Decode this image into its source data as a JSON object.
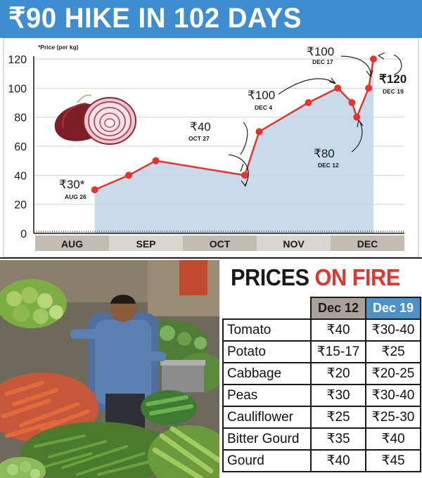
{
  "headline": "₹90 HIKE IN 102 DAYS",
  "chart_data": {
    "type": "area",
    "note": "*Price (per kg)",
    "ylim": [
      0,
      120
    ],
    "yticks": [
      "0",
      "20",
      "40",
      "60",
      "80",
      "100",
      "120"
    ],
    "months": [
      "AUG",
      "SEP",
      "OCT",
      "NOV",
      "DEC"
    ],
    "x": [
      "2019-08-26",
      "2019-09-09",
      "2019-09-20",
      "2019-10-27",
      "2019-11-02",
      "2019-11-22",
      "2019-12-04",
      "2019-12-10",
      "2019-12-12",
      "2019-12-17",
      "2019-12-19"
    ],
    "values": [
      30,
      40,
      50,
      40,
      70,
      90,
      100,
      90,
      80,
      100,
      120
    ],
    "colors": {
      "line": "#e8322e",
      "fill": "#bed5e6",
      "axis_band": "#c3bcb3",
      "axis_band_alt": "#dad5cf"
    },
    "annotations": [
      {
        "value": "₹30*",
        "date": "AUG 26"
      },
      {
        "value": "₹40",
        "date": "OCT 27"
      },
      {
        "value": "₹100",
        "date": "DEC 4"
      },
      {
        "value": "₹100",
        "date": "DEC 17"
      },
      {
        "value": "₹80",
        "date": "DEC 12"
      },
      {
        "value": "₹120",
        "date": "DEC 19"
      }
    ]
  },
  "table": {
    "title_part1": "PRICES",
    "title_part2": "ON FIRE",
    "headers": [
      "",
      "Dec 12",
      "Dec 19"
    ],
    "rows": [
      [
        "Tomato",
        "₹40",
        "₹30-40"
      ],
      [
        "Potato",
        "₹15-17",
        "₹25"
      ],
      [
        "Cabbage",
        "₹20",
        "₹20-25"
      ],
      [
        "Peas",
        "₹30",
        "₹30-40"
      ],
      [
        "Cauliflower",
        "₹25",
        "₹25-30"
      ],
      [
        "Bitter Gourd",
        "₹35",
        "₹40"
      ],
      [
        "Gourd",
        "₹40",
        "₹45"
      ]
    ]
  }
}
